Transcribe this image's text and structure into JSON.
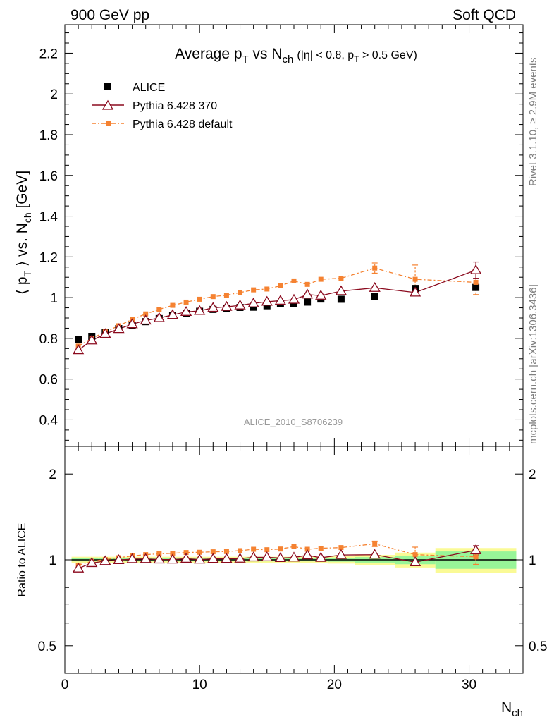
{
  "header": {
    "left": "900 GeV pp",
    "right": "Soft QCD"
  },
  "side": {
    "rivet": "Rivet 3.1.10, ≥ 2.9M events",
    "mcplots": "mcplots.cern.ch [arXiv:1306.3436]"
  },
  "watermark": "ALICE_2010_S8706239",
  "colors": {
    "alice": "#000000",
    "p370": "#8b0a1e",
    "pdef": "#f58231",
    "band_inner": "#98f598",
    "band_outer": "#fafa96"
  },
  "chart_data": [
    {
      "type": "scatter",
      "panel": "main",
      "title": {
        "pre": "Average p",
        "sub1": "T",
        "mid": " vs N",
        "sub2": "ch",
        "cut": "(|η| < 0.8, p",
        "cutsub": "T",
        "cutpost": " > 0.5 GeV)"
      },
      "ylabel": {
        "pre": "⟨ p",
        "sub1": "T",
        "mid": " ⟩ vs. N",
        "sub2": "ch",
        "post": " [GeV]"
      },
      "xlim": [
        0,
        34
      ],
      "ylim": [
        0.27,
        2.34
      ],
      "yticks": [
        0.4,
        0.6,
        0.8,
        1,
        1.2,
        1.4,
        1.6,
        1.8,
        2,
        2.2
      ],
      "ytick_labels": [
        "0.4",
        "0.6",
        "0.8",
        "1",
        "1.2",
        "1.4",
        "1.6",
        "1.8",
        "2",
        "2.2"
      ],
      "legend": [
        "ALICE",
        "Pythia 6.428 370",
        "Pythia 6.428 default"
      ],
      "series": [
        {
          "name": "ALICE",
          "x": [
            1,
            2,
            3,
            4,
            5,
            6,
            7,
            8,
            9,
            10,
            11,
            12,
            13,
            14,
            15,
            16,
            17,
            18,
            19,
            20.5,
            23,
            26,
            30.5
          ],
          "y": [
            0.795,
            0.81,
            0.83,
            0.848,
            0.865,
            0.882,
            0.897,
            0.913,
            0.922,
            0.933,
            0.942,
            0.947,
            0.952,
            0.953,
            0.96,
            0.97,
            0.972,
            0.978,
            0.993,
            0.992,
            1.006,
            1.045,
            1.05
          ]
        },
        {
          "name": "Pythia 6.428 370",
          "x": [
            1,
            2,
            3,
            4,
            5,
            6,
            7,
            8,
            9,
            10,
            11,
            12,
            13,
            14,
            15,
            16,
            17,
            18,
            19,
            20.5,
            23,
            26,
            30.5
          ],
          "y": [
            0.742,
            0.79,
            0.822,
            0.846,
            0.87,
            0.888,
            0.9,
            0.915,
            0.93,
            0.935,
            0.95,
            0.955,
            0.962,
            0.972,
            0.98,
            0.985,
            0.99,
            1.015,
            1.01,
            1.032,
            1.048,
            1.025,
            1.135
          ],
          "err": [
            0,
            0,
            0,
            0,
            0,
            0,
            0,
            0,
            0,
            0,
            0,
            0,
            0,
            0,
            0,
            0,
            0,
            0,
            0,
            0,
            0,
            0,
            0.04
          ]
        },
        {
          "name": "Pythia 6.428 default",
          "x": [
            1,
            2,
            3,
            4,
            5,
            6,
            7,
            8,
            9,
            10,
            11,
            12,
            13,
            14,
            15,
            16,
            17,
            18,
            19,
            20.5,
            23,
            26,
            30.5
          ],
          "y": [
            0.762,
            0.8,
            0.832,
            0.862,
            0.893,
            0.92,
            0.942,
            0.962,
            0.978,
            0.992,
            1.005,
            1.012,
            1.025,
            1.038,
            1.042,
            1.058,
            1.082,
            1.065,
            1.09,
            1.095,
            1.145,
            1.09,
            1.075
          ],
          "err": [
            0,
            0,
            0,
            0,
            0,
            0,
            0,
            0,
            0,
            0,
            0,
            0,
            0,
            0,
            0,
            0,
            0,
            0,
            0,
            0,
            0.025,
            0.07,
            0.06
          ]
        }
      ]
    },
    {
      "type": "scatter",
      "panel": "ratio",
      "ylabel": "Ratio to ALICE",
      "xlabel": {
        "pre": "N",
        "sub": "ch"
      },
      "xlim": [
        0,
        34
      ],
      "ylim_log": [
        0.4,
        2.5
      ],
      "yticks": [
        0.5,
        1,
        2
      ],
      "ytick_labels": [
        "0.5",
        "1",
        "2"
      ],
      "xticks": [
        0,
        10,
        20,
        30
      ],
      "xtick_labels": [
        "0",
        "10",
        "20",
        "30"
      ],
      "bands": {
        "x_edges": [
          0.5,
          1.5,
          2.5,
          3.5,
          4.5,
          5.5,
          6.5,
          7.5,
          8.5,
          9.5,
          10.5,
          11.5,
          12.5,
          13.5,
          14.5,
          15.5,
          16.5,
          17.5,
          18.5,
          19.5,
          21.5,
          24.5,
          27.5,
          33.5
        ],
        "inner": [
          0.012,
          0.012,
          0.012,
          0.012,
          0.012,
          0.012,
          0.012,
          0.012,
          0.012,
          0.012,
          0.012,
          0.012,
          0.012,
          0.012,
          0.012,
          0.012,
          0.012,
          0.012,
          0.012,
          0.015,
          0.022,
          0.035,
          0.07
        ],
        "outer": [
          0.025,
          0.025,
          0.025,
          0.025,
          0.025,
          0.025,
          0.025,
          0.025,
          0.025,
          0.025,
          0.025,
          0.025,
          0.025,
          0.025,
          0.025,
          0.025,
          0.025,
          0.025,
          0.025,
          0.03,
          0.04,
          0.06,
          0.1
        ]
      },
      "series": [
        {
          "name": "Pythia 6.428 370",
          "x": [
            1,
            2,
            3,
            4,
            5,
            6,
            7,
            8,
            9,
            10,
            11,
            12,
            13,
            14,
            15,
            16,
            17,
            18,
            19,
            20.5,
            23,
            26,
            30.5
          ],
          "y": [
            0.933,
            0.975,
            0.99,
            0.998,
            1.006,
            1.007,
            1.003,
            1.002,
            1.009,
            1.002,
            1.008,
            1.008,
            1.01,
            1.02,
            1.021,
            1.015,
            1.019,
            1.038,
            1.017,
            1.04,
            1.042,
            0.981,
            1.081
          ],
          "err": [
            0,
            0,
            0,
            0,
            0,
            0,
            0,
            0,
            0,
            0,
            0,
            0,
            0,
            0,
            0,
            0,
            0,
            0,
            0,
            0,
            0,
            0,
            0.04
          ]
        },
        {
          "name": "Pythia 6.428 default",
          "x": [
            1,
            2,
            3,
            4,
            5,
            6,
            7,
            8,
            9,
            10,
            11,
            12,
            13,
            14,
            15,
            16,
            17,
            18,
            19,
            20.5,
            23,
            26,
            30.5
          ],
          "y": [
            0.958,
            0.988,
            1.002,
            1.017,
            1.032,
            1.043,
            1.05,
            1.054,
            1.061,
            1.063,
            1.067,
            1.069,
            1.077,
            1.089,
            1.085,
            1.091,
            1.113,
            1.089,
            1.098,
            1.104,
            1.138,
            1.043,
            1.024
          ],
          "err": [
            0,
            0,
            0,
            0,
            0,
            0,
            0,
            0,
            0,
            0,
            0,
            0,
            0,
            0,
            0,
            0,
            0,
            0,
            0,
            0,
            0.025,
            0.065,
            0.06
          ]
        }
      ]
    }
  ]
}
